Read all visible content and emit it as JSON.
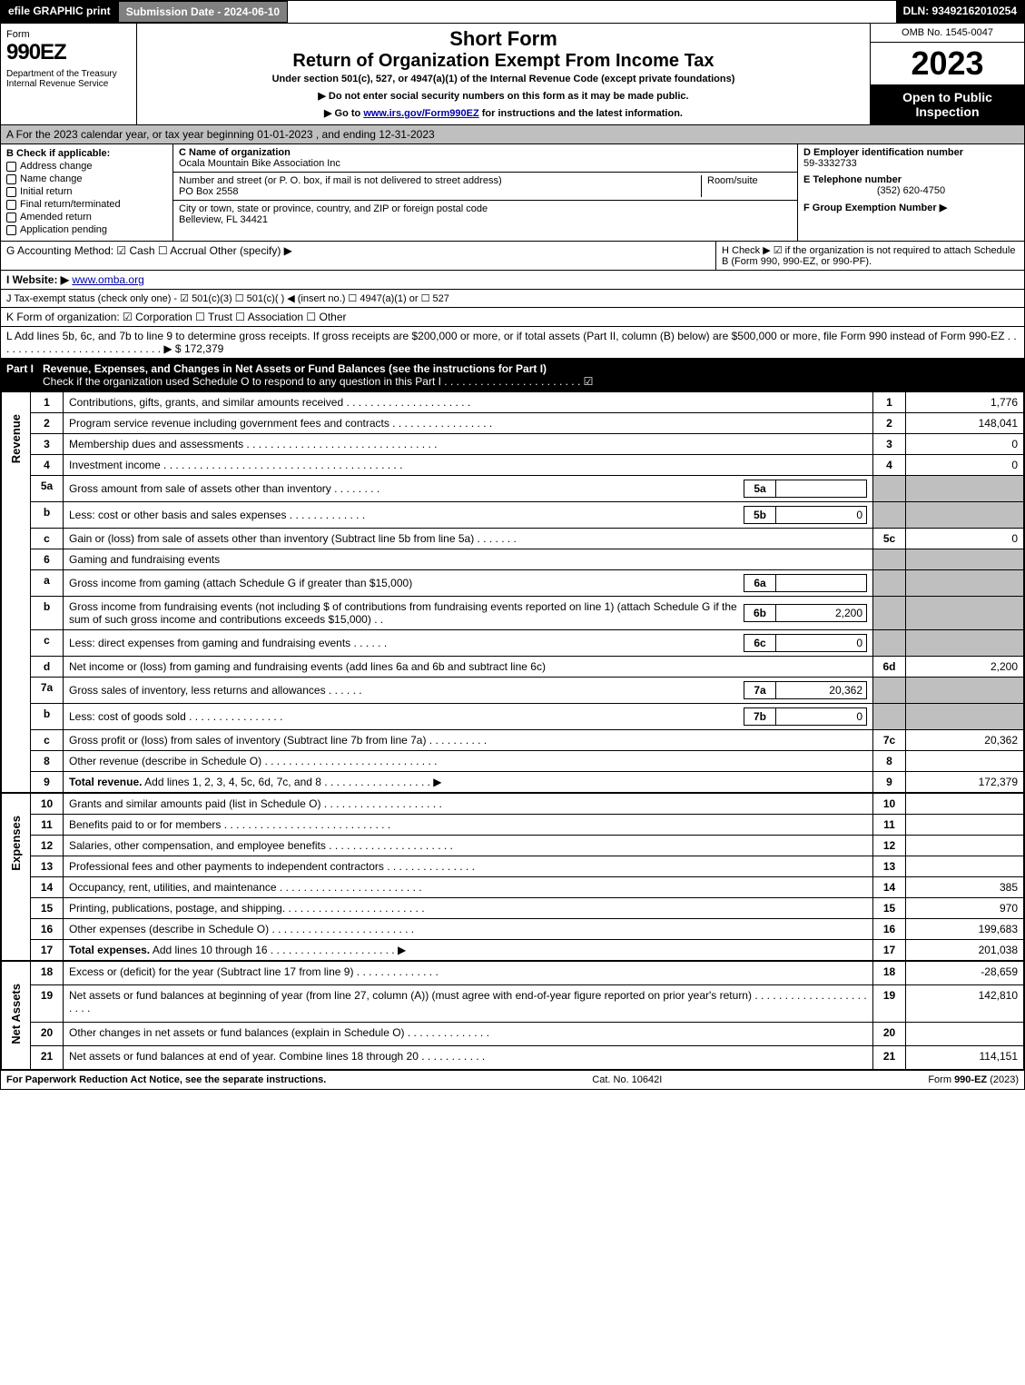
{
  "topbar": {
    "efile": "efile GRAPHIC print",
    "subdate": "Submission Date - 2024-06-10",
    "dln": "DLN: 93492162010254"
  },
  "header": {
    "form": "Form",
    "formnum": "990EZ",
    "dept": "Department of the Treasury\nInternal Revenue Service",
    "title1": "Short Form",
    "title2": "Return of Organization Exempt From Income Tax",
    "sub": "Under section 501(c), 527, or 4947(a)(1) of the Internal Revenue Code (except private foundations)",
    "sub2a": "▶ Do not enter social security numbers on this form as it may be made public.",
    "sub2b": "▶ Go to www.irs.gov/Form990EZ for instructions and the latest information.",
    "omb": "OMB No. 1545-0047",
    "year": "2023",
    "open": "Open to Public Inspection"
  },
  "sectA": "A  For the 2023 calendar year, or tax year beginning 01-01-2023 , and ending 12-31-2023",
  "colB": {
    "label": "B  Check if applicable:",
    "items": [
      "Address change",
      "Name change",
      "Initial return",
      "Final return/terminated",
      "Amended return",
      "Application pending"
    ]
  },
  "colC": {
    "nameLabel": "C Name of organization",
    "name": "Ocala Mountain Bike Association Inc",
    "streetLabel": "Number and street (or P. O. box, if mail is not delivered to street address)",
    "roomLabel": "Room/suite",
    "street": "PO Box 2558",
    "cityLabel": "City or town, state or province, country, and ZIP or foreign postal code",
    "city": "Belleview, FL  34421"
  },
  "colD": {
    "dLabel": "D Employer identification number",
    "ein": "59-3332733",
    "eLabel": "E Telephone number",
    "phone": "(352) 620-4750",
    "fLabel": "F Group Exemption Number   ▶"
  },
  "lineG": "G Accounting Method:   ☑ Cash   ☐ Accrual   Other (specify) ▶",
  "lineH": "H   Check ▶  ☑  if the organization is not required to attach Schedule B (Form 990, 990-EZ, or 990-PF).",
  "lineI": {
    "label": "I Website: ▶",
    "val": "www.omba.org"
  },
  "lineJ": "J Tax-exempt status (check only one) -  ☑ 501(c)(3)  ☐  501(c)(  ) ◀ (insert no.)  ☐  4947(a)(1) or  ☐  527",
  "lineK": "K Form of organization:   ☑ Corporation   ☐ Trust   ☐ Association   ☐ Other",
  "lineL": {
    "text": "L Add lines 5b, 6c, and 7b to line 9 to determine gross receipts. If gross receipts are $200,000 or more, or if total assets (Part II, column (B) below) are $500,000 or more, file Form 990 instead of Form 990-EZ  .  .  .  .  .  .  .  .  .  .  .  .  .  .  .  .  .  .  .  .  .  .  .  .  .  .  .  .  ▶ $",
    "val": "172,379"
  },
  "partI": {
    "tag": "Part I",
    "title": "Revenue, Expenses, and Changes in Net Assets or Fund Balances (see the instructions for Part I)",
    "sub": "Check if the organization used Schedule O to respond to any question in this Part I  .  .  .  .  .  .  .  .  .  .  .  .  .  .  .  .  .  .  .  .  .  .  .   ☑"
  },
  "sections": {
    "revenue": "Revenue",
    "expenses": "Expenses",
    "netassets": "Net Assets"
  },
  "rows": [
    {
      "n": "1",
      "desc": "Contributions, gifts, grants, and similar amounts received  .  .  .  .  .  .  .  .  .  .  .  .  .  .  .  .  .  .  .  .  .",
      "rn": "1",
      "val": "1,776"
    },
    {
      "n": "2",
      "desc": "Program service revenue including government fees and contracts  .  .  .  .  .  .  .  .  .  .  .  .  .  .  .  .  .",
      "rn": "2",
      "val": "148,041"
    },
    {
      "n": "3",
      "desc": "Membership dues and assessments  .  .  .  .  .  .  .  .  .  .  .  .  .  .  .  .  .  .  .  .  .  .  .  .  .  .  .  .  .  .  .  .",
      "rn": "3",
      "val": "0"
    },
    {
      "n": "4",
      "desc": "Investment income  .  .  .  .  .  .  .  .  .  .  .  .  .  .  .  .  .  .  .  .  .  .  .  .  .  .  .  .  .  .  .  .  .  .  .  .  .  .  .  .",
      "rn": "4",
      "val": "0"
    },
    {
      "n": "5a",
      "desc": "Gross amount from sale of assets other than inventory  .  .  .  .  .  .  .  .",
      "sub": "5a",
      "subval": "",
      "grey": true
    },
    {
      "n": "b",
      "desc": "Less: cost or other basis and sales expenses  .  .  .  .  .  .  .  .  .  .  .  .  .",
      "sub": "5b",
      "subval": "0",
      "grey": true
    },
    {
      "n": "c",
      "desc": "Gain or (loss) from sale of assets other than inventory (Subtract line 5b from line 5a)  .  .  .  .  .  .  .",
      "rn": "5c",
      "val": "0"
    },
    {
      "n": "6",
      "desc": "Gaming and fundraising events",
      "grey": true
    },
    {
      "n": "a",
      "desc": "Gross income from gaming (attach Schedule G if greater than $15,000)",
      "sub": "6a",
      "subval": "",
      "grey": true
    },
    {
      "n": "b",
      "desc": "Gross income from fundraising events (not including $                       of contributions from fundraising events reported on line 1) (attach Schedule G if the sum of such gross income and contributions exceeds $15,000)   .   .",
      "sub": "6b",
      "subval": "2,200",
      "grey": true
    },
    {
      "n": "c",
      "desc": "Less: direct expenses from gaming and fundraising events  .  .  .  .  .  .",
      "sub": "6c",
      "subval": "0",
      "grey": true
    },
    {
      "n": "d",
      "desc": "Net income or (loss) from gaming and fundraising events (add lines 6a and 6b and subtract line 6c)",
      "rn": "6d",
      "val": "2,200"
    },
    {
      "n": "7a",
      "desc": "Gross sales of inventory, less returns and allowances  .  .  .  .  .  .",
      "sub": "7a",
      "subval": "20,362",
      "grey": true
    },
    {
      "n": "b",
      "desc": "Less: cost of goods sold         .  .  .  .  .  .  .  .  .  .  .  .  .  .  .  .",
      "sub": "7b",
      "subval": "0",
      "grey": true
    },
    {
      "n": "c",
      "desc": "Gross profit or (loss) from sales of inventory (Subtract line 7b from line 7a)  .  .  .  .  .  .  .  .  .  .",
      "rn": "7c",
      "val": "20,362"
    },
    {
      "n": "8",
      "desc": "Other revenue (describe in Schedule O)  .  .  .  .  .  .  .  .  .  .  .  .  .  .  .  .  .  .  .  .  .  .  .  .  .  .  .  .  .",
      "rn": "8",
      "val": ""
    },
    {
      "n": "9",
      "desc": "Total revenue. Add lines 1, 2, 3, 4, 5c, 6d, 7c, and 8  .  .  .  .  .  .  .  .  .  .  .  .  .  .  .  .  .  .   ▶",
      "rn": "9",
      "val": "172,379",
      "bold": true
    }
  ],
  "exp_rows": [
    {
      "n": "10",
      "desc": "Grants and similar amounts paid (list in Schedule O)  .  .  .  .  .  .  .  .  .  .  .  .  .  .  .  .  .  .  .  .",
      "rn": "10",
      "val": ""
    },
    {
      "n": "11",
      "desc": "Benefits paid to or for members     .  .  .  .  .  .  .  .  .  .  .  .  .  .  .  .  .  .  .  .  .  .  .  .  .  .  .  .",
      "rn": "11",
      "val": ""
    },
    {
      "n": "12",
      "desc": "Salaries, other compensation, and employee benefits .  .  .  .  .  .  .  .  .  .  .  .  .  .  .  .  .  .  .  .  .",
      "rn": "12",
      "val": ""
    },
    {
      "n": "13",
      "desc": "Professional fees and other payments to independent contractors  .  .  .  .  .  .  .  .  .  .  .  .  .  .  .",
      "rn": "13",
      "val": ""
    },
    {
      "n": "14",
      "desc": "Occupancy, rent, utilities, and maintenance .  .  .  .  .  .  .  .  .  .  .  .  .  .  .  .  .  .  .  .  .  .  .  .",
      "rn": "14",
      "val": "385"
    },
    {
      "n": "15",
      "desc": "Printing, publications, postage, and shipping.  .  .  .  .  .  .  .  .  .  .  .  .  .  .  .  .  .  .  .  .  .  .  .",
      "rn": "15",
      "val": "970"
    },
    {
      "n": "16",
      "desc": "Other expenses (describe in Schedule O)     .  .  .  .  .  .  .  .  .  .  .  .  .  .  .  .  .  .  .  .  .  .  .  .",
      "rn": "16",
      "val": "199,683"
    },
    {
      "n": "17",
      "desc": "Total expenses. Add lines 10 through 16    .  .  .  .  .  .  .  .  .  .  .  .  .  .  .  .  .  .  .  .  .   ▶",
      "rn": "17",
      "val": "201,038",
      "bold": true
    }
  ],
  "na_rows": [
    {
      "n": "18",
      "desc": "Excess or (deficit) for the year (Subtract line 17 from line 9)       .  .  .  .  .  .  .  .  .  .  .  .  .  .",
      "rn": "18",
      "val": "-28,659"
    },
    {
      "n": "19",
      "desc": "Net assets or fund balances at beginning of year (from line 27, column (A)) (must agree with end-of-year figure reported on prior year's return) .  .  .  .  .  .  .  .  .  .  .  .  .  .  .  .  .  .  .  .  .  .  .",
      "rn": "19",
      "val": "142,810"
    },
    {
      "n": "20",
      "desc": "Other changes in net assets or fund balances (explain in Schedule O) .  .  .  .  .  .  .  .  .  .  .  .  .  .",
      "rn": "20",
      "val": ""
    },
    {
      "n": "21",
      "desc": "Net assets or fund balances at end of year. Combine lines 18 through 20 .  .  .  .  .  .  .  .  .  .  .",
      "rn": "21",
      "val": "114,151"
    }
  ],
  "footer": {
    "left": "For Paperwork Reduction Act Notice, see the separate instructions.",
    "center": "Cat. No. 10642I",
    "right": "Form 990-EZ (2023)"
  }
}
